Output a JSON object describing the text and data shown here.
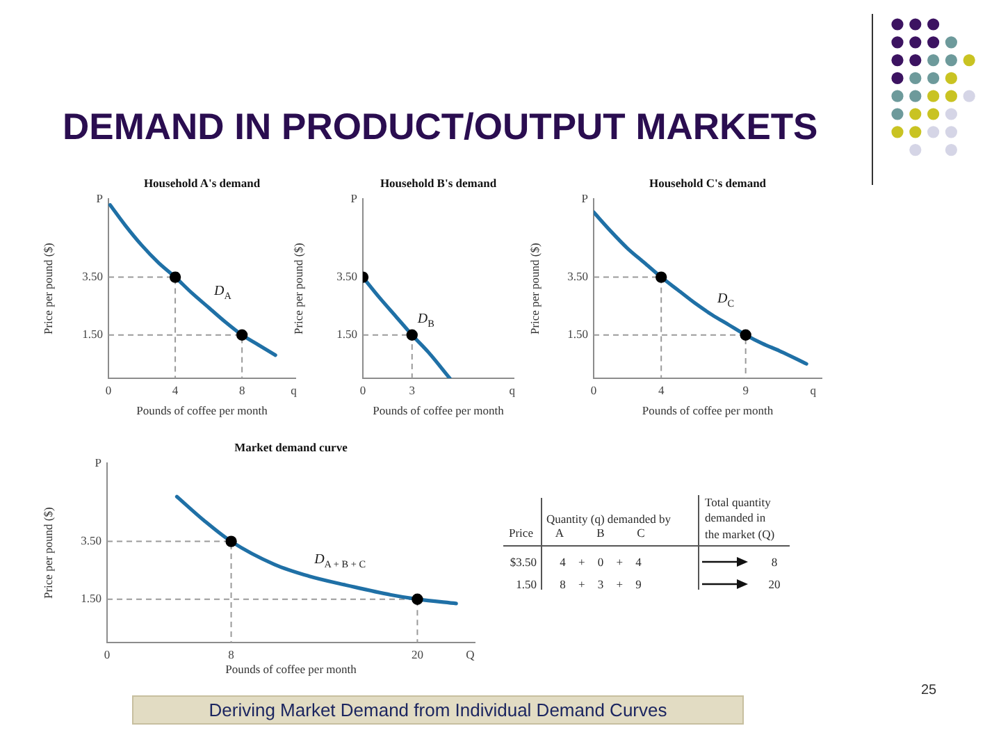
{
  "chart_data": [
    {
      "type": "other",
      "title": "DEMAND IN PRODUCT/OUTPUT MARKETS",
      "annotations": [
        "Deriving Market Demand from Individual Demand Curves",
        "25"
      ]
    },
    {
      "type": "line",
      "title": "Household A's demand",
      "xlabel": "Pounds of coffee per month",
      "ylabel": "Price per pound ($)",
      "xlim": [
        0,
        11.2
      ],
      "xticks": [
        0,
        4,
        8,
        {
          "value": 11.1,
          "label": "q"
        }
      ],
      "ylim": [
        0,
        6.2
      ],
      "yticks": [
        {
          "value": 1.5,
          "label": "1.50"
        },
        {
          "value": 3.5,
          "label": "3.50"
        },
        {
          "value": 6.2,
          "label": "P"
        }
      ],
      "series": [
        {
          "name": "D$_{A}$",
          "color": "#1f70a6",
          "x": [
            0.1,
            1,
            2,
            3,
            4,
            5,
            6,
            7,
            8,
            9,
            10
          ],
          "values": [
            6.0,
            5.3,
            4.6,
            4.0,
            3.5,
            2.95,
            2.45,
            1.95,
            1.5,
            1.15,
            0.8
          ]
        },
        {
          "type": "scatter",
          "color": "#000000",
          "marker": "circle",
          "x": [
            4,
            8
          ],
          "values": [
            3.5,
            1.5
          ]
        },
        {
          "color": "#9a9a9a",
          "line_style": "dashed",
          "x": [
            0,
            4,
            4
          ],
          "values": [
            3.5,
            3.5,
            0
          ]
        },
        {
          "color": "#9a9a9a",
          "line_style": "dashed",
          "x": [
            0,
            8,
            8
          ],
          "values": [
            1.5,
            1.5,
            0
          ]
        }
      ]
    },
    {
      "type": "line",
      "title": "Household B's demand",
      "xlabel": "Pounds of coffee per month",
      "ylabel": "Price per pound ($)",
      "xlim": [
        0,
        9.2
      ],
      "xticks": [
        0,
        3,
        {
          "value": 9.1,
          "label": "q"
        }
      ],
      "ylim": [
        0,
        6.2
      ],
      "yticks": [
        {
          "value": 1.5,
          "label": "1.50"
        },
        {
          "value": 3.5,
          "label": "3.50"
        },
        {
          "value": 6.2,
          "label": "P"
        }
      ],
      "series": [
        {
          "name": "D$_{B}$",
          "color": "#1f70a6",
          "x": [
            0,
            1,
            2,
            3,
            4,
            5.3
          ],
          "values": [
            3.5,
            2.8,
            2.15,
            1.5,
            0.9,
            0
          ]
        },
        {
          "type": "scatter",
          "color": "#000000",
          "marker": "circle",
          "x": [
            0,
            3
          ],
          "values": [
            3.5,
            1.5
          ]
        },
        {
          "color": "#9a9a9a",
          "line_style": "dashed",
          "x": [
            0,
            3,
            3
          ],
          "values": [
            1.5,
            1.5,
            0
          ]
        }
      ]
    },
    {
      "type": "line",
      "title": "Household C's demand",
      "xlabel": "Pounds of coffee per month",
      "ylabel": "Price per pound ($)",
      "xlim": [
        0,
        13.5
      ],
      "xticks": [
        0,
        4,
        9,
        {
          "value": 13,
          "label": "q"
        }
      ],
      "ylim": [
        0,
        6.2
      ],
      "yticks": [
        {
          "value": 1.5,
          "label": "1.50"
        },
        {
          "value": 3.5,
          "label": "3.50"
        },
        {
          "value": 6.2,
          "label": "P"
        }
      ],
      "series": [
        {
          "name": "D$_{C}$",
          "color": "#1f70a6",
          "x": [
            0,
            1,
            2,
            3,
            4,
            5,
            6,
            7,
            8,
            9,
            10,
            11,
            12.6
          ],
          "values": [
            5.75,
            5.1,
            4.5,
            4.0,
            3.5,
            3.05,
            2.6,
            2.2,
            1.85,
            1.5,
            1.2,
            0.95,
            0.5
          ]
        },
        {
          "type": "scatter",
          "color": "#000000",
          "marker": "circle",
          "x": [
            4,
            9
          ],
          "values": [
            3.5,
            1.5
          ]
        },
        {
          "color": "#9a9a9a",
          "line_style": "dashed",
          "x": [
            0,
            4,
            4
          ],
          "values": [
            3.5,
            3.5,
            0
          ]
        },
        {
          "color": "#9a9a9a",
          "line_style": "dashed",
          "x": [
            0,
            9,
            9
          ],
          "values": [
            1.5,
            1.5,
            0
          ]
        }
      ]
    },
    {
      "type": "line",
      "title": "Market demand curve",
      "xlabel": "Pounds of coffee per month",
      "ylabel": "Price per pound ($)",
      "xlim": [
        0,
        23.7
      ],
      "xticks": [
        0,
        8,
        20,
        {
          "value": 23.4,
          "label": "Q"
        }
      ],
      "ylim": [
        0,
        6.2
      ],
      "yticks": [
        {
          "value": 1.5,
          "label": "1.50"
        },
        {
          "value": 3.5,
          "label": "3.50"
        },
        {
          "value": 6.2,
          "label": "P"
        }
      ],
      "series": [
        {
          "name": "D$_{A + B + C}$",
          "color": "#1f70a6",
          "x": [
            4.5,
            6.3,
            8,
            10.8,
            13,
            15.3,
            18.3,
            20,
            22.5
          ],
          "values": [
            5.05,
            4.2,
            3.5,
            2.7,
            2.3,
            2.0,
            1.65,
            1.5,
            1.35
          ]
        },
        {
          "type": "scatter",
          "color": "#000000",
          "marker": "circle",
          "x": [
            8,
            20
          ],
          "values": [
            3.5,
            1.5
          ]
        },
        {
          "color": "#9a9a9a",
          "line_style": "dashed",
          "x": [
            0,
            8,
            8
          ],
          "values": [
            3.5,
            3.5,
            0
          ]
        },
        {
          "color": "#9a9a9a",
          "line_style": "dashed",
          "x": [
            0,
            20,
            20
          ],
          "values": [
            1.5,
            1.5,
            0
          ]
        }
      ]
    },
    {
      "type": "other",
      "annotations": [
        "Quantity (q) demanded by",
        "Price",
        "A",
        "B",
        "C",
        "Total quantity demanded in the market (Q)",
        "$3.50",
        "4 + 0 + 4",
        "8",
        "1.50",
        "8 + 3 + 9",
        "20"
      ]
    }
  ]
}
